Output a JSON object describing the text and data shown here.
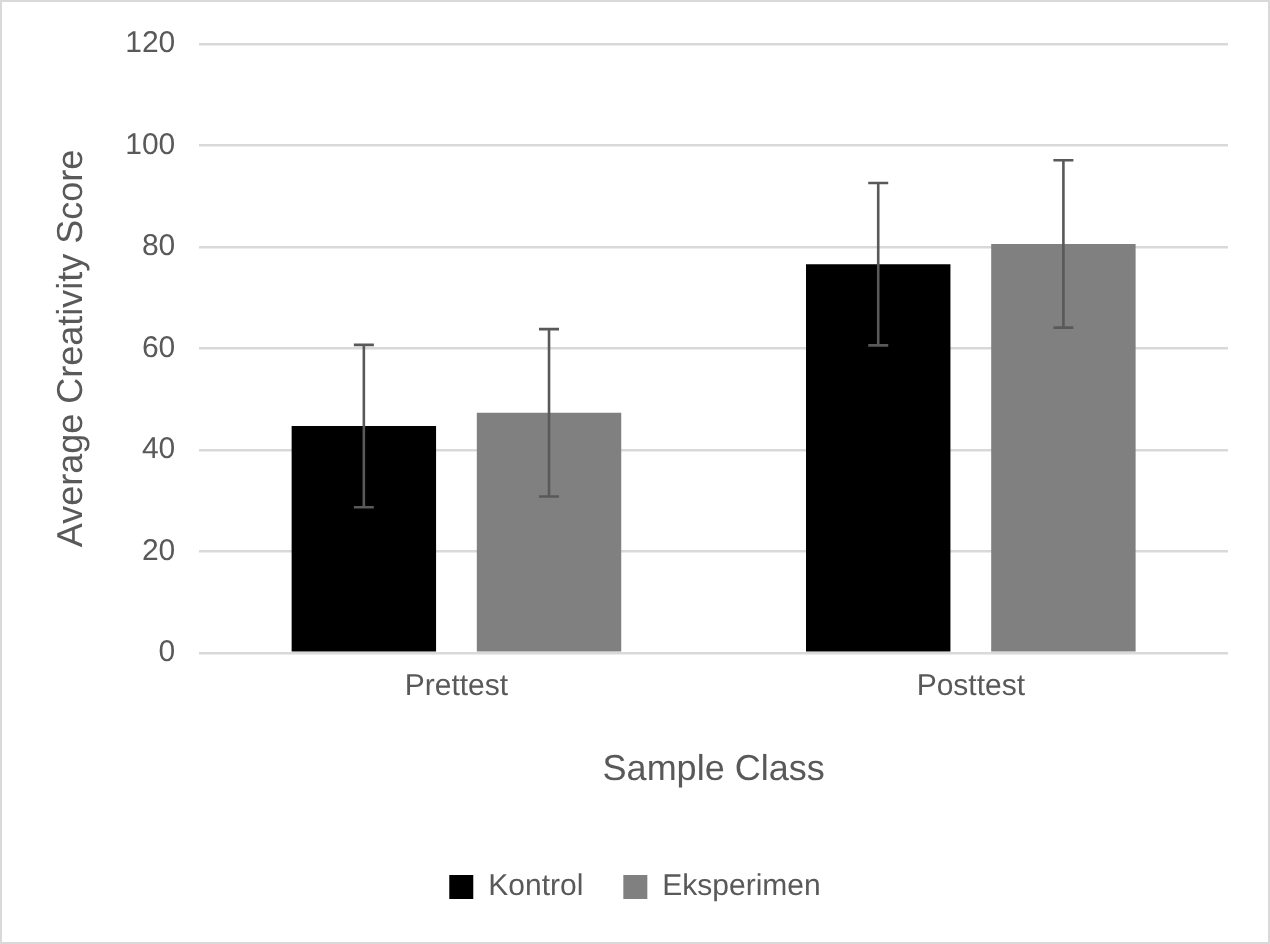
{
  "chart_data": {
    "type": "bar",
    "xlabel": "Sample Class",
    "ylabel": "Average Creativity Score",
    "categories": [
      "Prettest",
      "Posttest"
    ],
    "series": [
      {
        "name": "Kontrol",
        "color": "#000000",
        "values": [
          44.7,
          76.6
        ],
        "errors": [
          16,
          16
        ]
      },
      {
        "name": "Eksperimen",
        "color": "#808080",
        "values": [
          47.3,
          80.6
        ],
        "errors": [
          16.5,
          16.5
        ]
      }
    ],
    "ylim": [
      0,
      120
    ],
    "yticks": [
      0,
      20,
      40,
      60,
      80,
      100,
      120
    ],
    "grid": "y",
    "legend": "bottom"
  }
}
